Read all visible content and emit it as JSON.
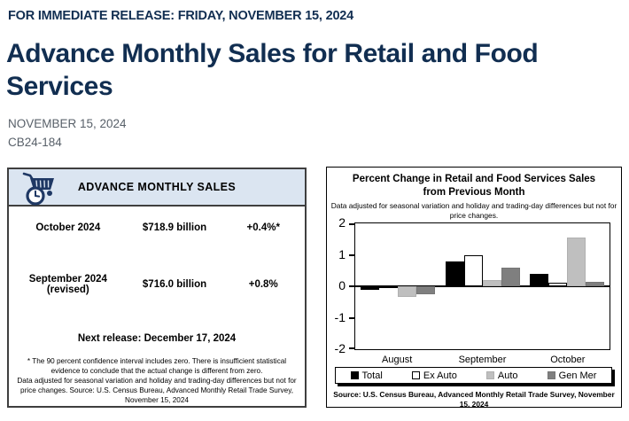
{
  "page": {
    "release_line": "FOR IMMEDIATE RELEASE: FRIDAY, NOVEMBER 15, 2024",
    "title_lines": [
      "Advance Monthly Sales for Retail and Food",
      "Services"
    ],
    "date": "NOVEMBER 15, 2024",
    "release_number": "CB24-184"
  },
  "colors": {
    "heading_navy": "#112e51",
    "card_header_bg": "#dbe5f1",
    "icon_navy": "#1f3864"
  },
  "sales_card": {
    "icon": "cart-clock-icon",
    "header": "ADVANCE MONTHLY SALES",
    "rows": [
      {
        "period": "October 2024",
        "note": "",
        "value": "$718.9 billion",
        "change": "+0.4%*"
      },
      {
        "period": "September 2024",
        "note": "(revised)",
        "value": "$716.0 billion",
        "change": "+0.8%"
      }
    ],
    "next_release": "Next release: December 17, 2024",
    "footnote1": "* The 90 percent confidence interval includes zero. There is insufficient statistical evidence to conclude that the actual change is different from zero.",
    "footnote2": "Data adjusted for seasonal variation and holiday and trading-day differences but not for price changes. Source: U.S. Census Bureau, Advanced Monthly Retail Trade Survey, November 15, 2024"
  },
  "chart_data": {
    "type": "bar",
    "title": "Percent Change in Retail and Food Services Sales from Previous Month",
    "subtitle": "Data adjusted for seasonal variation and holiday and trading-day differences but not for price changes.",
    "categories": [
      "August",
      "September",
      "October"
    ],
    "series": [
      {
        "name": "Total",
        "color": "#000000",
        "border": "#000000",
        "values": [
          -0.1,
          0.8,
          0.4
        ]
      },
      {
        "name": "Ex Auto",
        "color": "#ffffff",
        "border": "#000000",
        "values": [
          -0.05,
          1.0,
          0.1
        ]
      },
      {
        "name": "Auto",
        "color": "#bfbfbf",
        "border": "#b0b0b0",
        "values": [
          -0.35,
          0.2,
          1.55
        ]
      },
      {
        "name": "Gen Mer",
        "color": "#7f7f7f",
        "border": "#757575",
        "values": [
          -0.25,
          0.6,
          0.15
        ]
      }
    ],
    "ylim": [
      -2,
      2
    ],
    "yticks": [
      2,
      1,
      0,
      -1,
      -2
    ],
    "grid": false,
    "legend_position": "bottom",
    "source": "Source: U.S. Census Bureau, Advanced Monthly Retail Trade Survey, November 15, 2024"
  }
}
